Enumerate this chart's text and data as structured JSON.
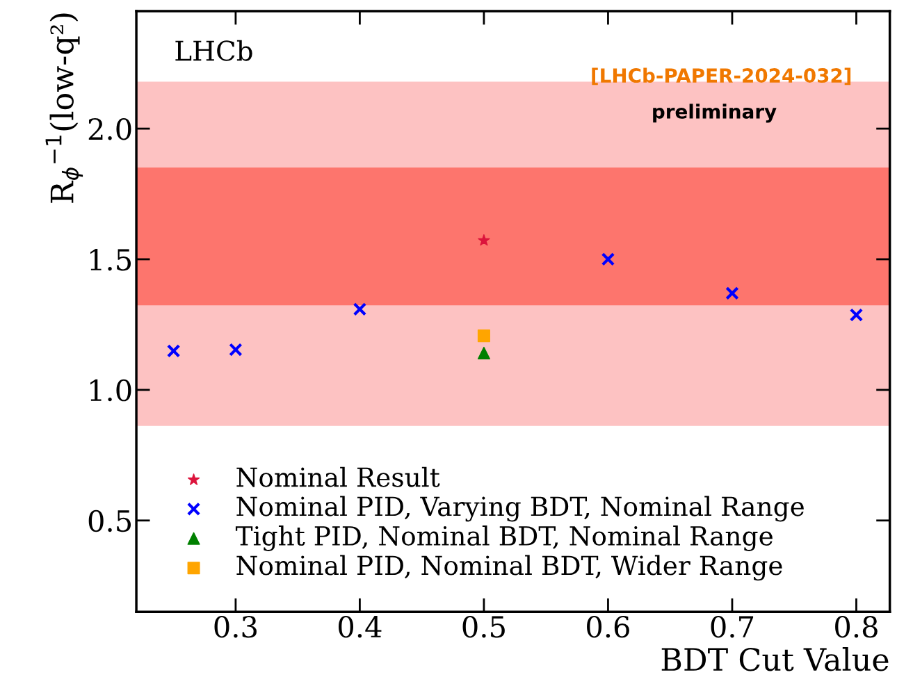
{
  "chart_data": {
    "type": "scatter",
    "xlabel": "BDT Cut Value",
    "ylabel": "R$_{ϕ}$$^{−1}$(low-q²)",
    "annotations": [
      "LHCb",
      "[LHCb-PAPER-2024-032]",
      "preliminary"
    ],
    "xlim": [
      0.22,
      0.827
    ],
    "xticks": [
      0.3,
      0.4,
      0.5,
      0.6,
      0.7,
      0.8
    ],
    "ylim": [
      0.15,
      2.45
    ],
    "yticks": [
      0.5,
      {
        "value": 1,
        "label": "1.0"
      },
      1.5,
      {
        "value": 2,
        "label": "2.0"
      }
    ],
    "bands": [
      {
        "axis": "y",
        "from": 0.862,
        "to": 2.18,
        "color": "#fdc2c2"
      },
      {
        "axis": "y",
        "from": 1.324,
        "to": 1.851,
        "color": "#fd756d"
      }
    ],
    "series": [
      {
        "name": "Nominal Result",
        "color": "#dc143c",
        "marker": "star",
        "x": [
          0.5
        ],
        "values": [
          1.572
        ]
      },
      {
        "name": "Nominal PID, Varying BDT, Nominal Range",
        "color": "#0000ff",
        "marker": "cross",
        "x": [
          0.25,
          0.3,
          0.4,
          0.6,
          0.7,
          0.8
        ],
        "values": [
          1.149,
          1.154,
          1.309,
          1.5,
          1.37,
          1.287
        ]
      },
      {
        "name": "Tight PID, Nominal BDT, Nominal Range",
        "color": "#008000",
        "marker": "triangle",
        "x": [
          0.5
        ],
        "values": [
          1.141
        ]
      },
      {
        "name": "Nominal PID, Nominal BDT, Wider Range",
        "color": "#ffa500",
        "marker": "square",
        "x": [
          0.5
        ],
        "values": [
          1.207
        ]
      }
    ],
    "legend": "bottom left",
    "grid": false
  }
}
